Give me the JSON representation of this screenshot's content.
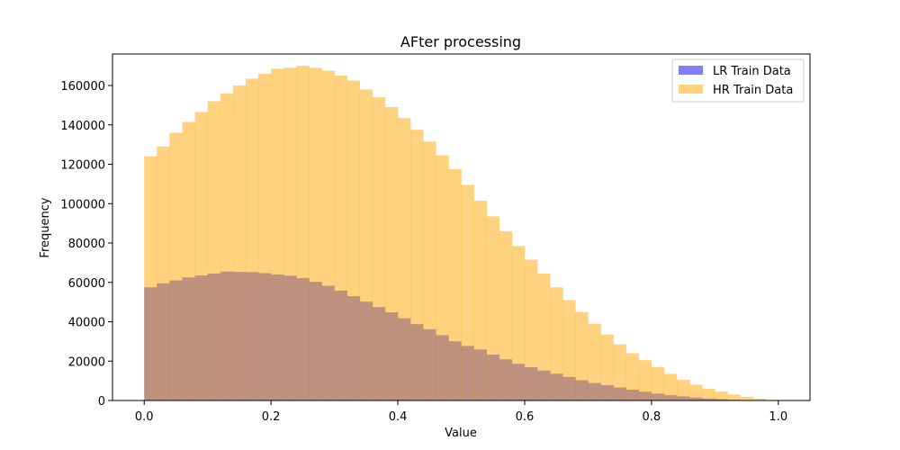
{
  "chart_data": {
    "type": "bar",
    "title": "AFter processing",
    "xlabel": "Value",
    "ylabel": "Frequency",
    "xlim": [
      -0.05,
      1.05
    ],
    "ylim": [
      0,
      176000
    ],
    "x_ticks": [
      "0.0",
      "0.2",
      "0.4",
      "0.6",
      "0.8",
      "1.0"
    ],
    "x_tick_values": [
      0,
      0.2,
      0.4,
      0.6,
      0.8,
      1.0
    ],
    "y_ticks": [
      "0",
      "20000",
      "40000",
      "60000",
      "80000",
      "100000",
      "120000",
      "140000",
      "160000"
    ],
    "y_tick_values": [
      0,
      20000,
      40000,
      60000,
      80000,
      100000,
      120000,
      140000,
      160000
    ],
    "bins": 50,
    "bin_range": [
      0,
      1
    ],
    "legend_position": "top-right",
    "series": [
      {
        "name": "LR Train Data",
        "color": "#0000ff",
        "opacity": 0.5,
        "values": [
          57500,
          59500,
          61000,
          62500,
          63500,
          64500,
          65500,
          65300,
          65200,
          64700,
          64000,
          63400,
          62200,
          60300,
          58300,
          55800,
          53000,
          50200,
          47500,
          44800,
          41800,
          38800,
          36200,
          33200,
          30100,
          27700,
          25900,
          23300,
          20900,
          18600,
          16900,
          15200,
          13600,
          11900,
          10300,
          8900,
          7800,
          6600,
          5500,
          4500,
          3500,
          2700,
          2100,
          1500,
          1000,
          700,
          400,
          200,
          100,
          30
        ]
      },
      {
        "name": "HR Train Data",
        "color": "#ffa500",
        "opacity": 0.5,
        "values": [
          124000,
          129000,
          136000,
          141500,
          146500,
          152000,
          156000,
          160000,
          163500,
          166000,
          168500,
          169000,
          170000,
          169000,
          167500,
          165000,
          162500,
          158000,
          154000,
          149000,
          143500,
          137500,
          131500,
          124500,
          117500,
          109500,
          101500,
          93500,
          86000,
          78500,
          71500,
          64500,
          57500,
          51000,
          45000,
          39000,
          33500,
          28500,
          24000,
          20500,
          17000,
          13500,
          10500,
          8000,
          6000,
          4500,
          3000,
          1800,
          900,
          300
        ]
      }
    ]
  }
}
